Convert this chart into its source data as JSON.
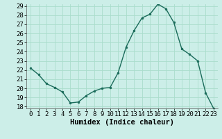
{
  "x": [
    0,
    1,
    2,
    3,
    4,
    5,
    6,
    7,
    8,
    9,
    10,
    11,
    12,
    13,
    14,
    15,
    16,
    17,
    18,
    19,
    20,
    21,
    22,
    23
  ],
  "y": [
    22.2,
    21.5,
    20.5,
    20.1,
    19.6,
    18.4,
    18.5,
    19.2,
    19.7,
    20.0,
    20.1,
    21.7,
    24.5,
    26.3,
    27.7,
    28.1,
    29.2,
    28.7,
    27.2,
    24.3,
    23.7,
    23.0,
    19.5,
    17.8
  ],
  "xlabel": "Humidex (Indice chaleur)",
  "ylim": [
    18,
    29
  ],
  "xlim": [
    -0.5,
    23.5
  ],
  "yticks": [
    18,
    19,
    20,
    21,
    22,
    23,
    24,
    25,
    26,
    27,
    28,
    29
  ],
  "xticks": [
    0,
    1,
    2,
    3,
    4,
    5,
    6,
    7,
    8,
    9,
    10,
    11,
    12,
    13,
    14,
    15,
    16,
    17,
    18,
    19,
    20,
    21,
    22,
    23
  ],
  "line_color": "#1a6b5a",
  "marker_color": "#1a6b5a",
  "bg_color": "#cceee8",
  "grid_color": "#aaddcc",
  "tick_label_fontsize": 6.5,
  "xlabel_fontsize": 7.5
}
